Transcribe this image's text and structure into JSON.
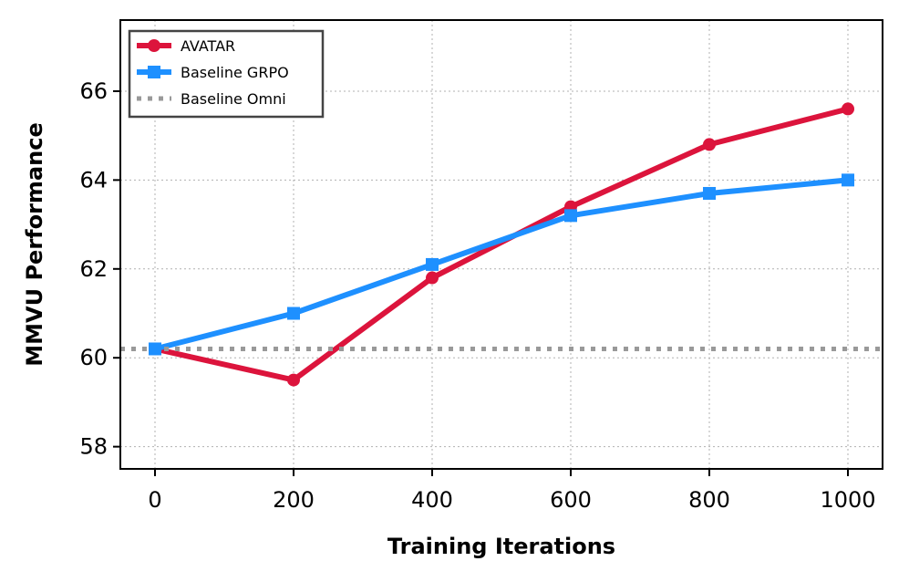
{
  "chart_data": {
    "type": "line",
    "title": "",
    "xlabel": "Training Iterations",
    "ylabel": "MMVU Performance",
    "xlim": [
      -50,
      1050
    ],
    "ylim": [
      57.5,
      67.6
    ],
    "xticks": [
      0,
      200,
      400,
      600,
      800,
      1000
    ],
    "yticks": [
      58,
      60,
      62,
      64,
      66
    ],
    "xtick_labels": [
      "0",
      "200",
      "400",
      "600",
      "800",
      "1000"
    ],
    "ytick_labels": [
      "58",
      "60",
      "62",
      "64",
      "66"
    ],
    "grid": true,
    "legend_position": "top-left",
    "x": [
      0,
      200,
      400,
      600,
      800,
      1000
    ],
    "series": [
      {
        "name": "AVATAR",
        "color": "#dc143c",
        "marker": "circle",
        "style": "solid",
        "values": [
          60.2,
          59.5,
          61.8,
          63.4,
          64.8,
          65.6
        ]
      },
      {
        "name": "Baseline GRPO",
        "color": "#1e90ff",
        "marker": "square",
        "style": "solid",
        "values": [
          60.2,
          61.0,
          62.1,
          63.2,
          63.7,
          64.0
        ]
      },
      {
        "name": "Baseline Omni",
        "color": "#999999",
        "marker": "none",
        "style": "dotted",
        "constant": 60.2
      }
    ]
  }
}
